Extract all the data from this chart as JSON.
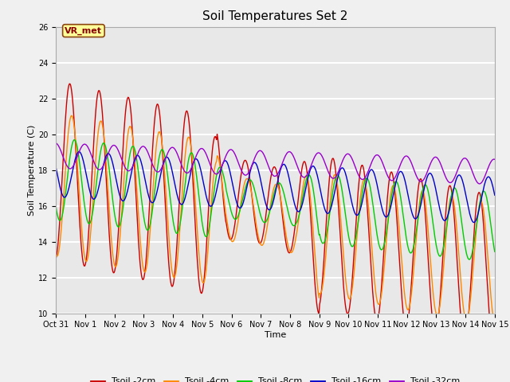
{
  "title": "Soil Temperatures Set 2",
  "xlabel": "Time",
  "ylabel": "Soil Temperature (C)",
  "ylim": [
    10,
    26
  ],
  "yticks": [
    10,
    12,
    14,
    16,
    18,
    20,
    22,
    24,
    26
  ],
  "xtick_labels": [
    "Oct 31",
    "Nov 1",
    "Nov 2",
    "Nov 3",
    "Nov 4",
    "Nov 5",
    "Nov 6",
    "Nov 7",
    "Nov 8",
    "Nov 9",
    "Nov 10",
    "Nov 11",
    "Nov 12",
    "Nov 13",
    "Nov 14",
    "Nov 15"
  ],
  "annotation_text": "VR_met",
  "colors": {
    "Tsoil_2cm": "#cc0000",
    "Tsoil_4cm": "#ff8800",
    "Tsoil_8cm": "#00cc00",
    "Tsoil_16cm": "#0000cc",
    "Tsoil_32cm": "#9900cc"
  },
  "legend_labels": [
    "Tsoil -2cm",
    "Tsoil -4cm",
    "Tsoil -8cm",
    "Tsoil -16cm",
    "Tsoil -32cm"
  ],
  "background_color": "#e8e8e8",
  "grid_color": "#ffffff",
  "title_fontsize": 11,
  "axis_fontsize": 8,
  "tick_fontsize": 7,
  "legend_fontsize": 8
}
